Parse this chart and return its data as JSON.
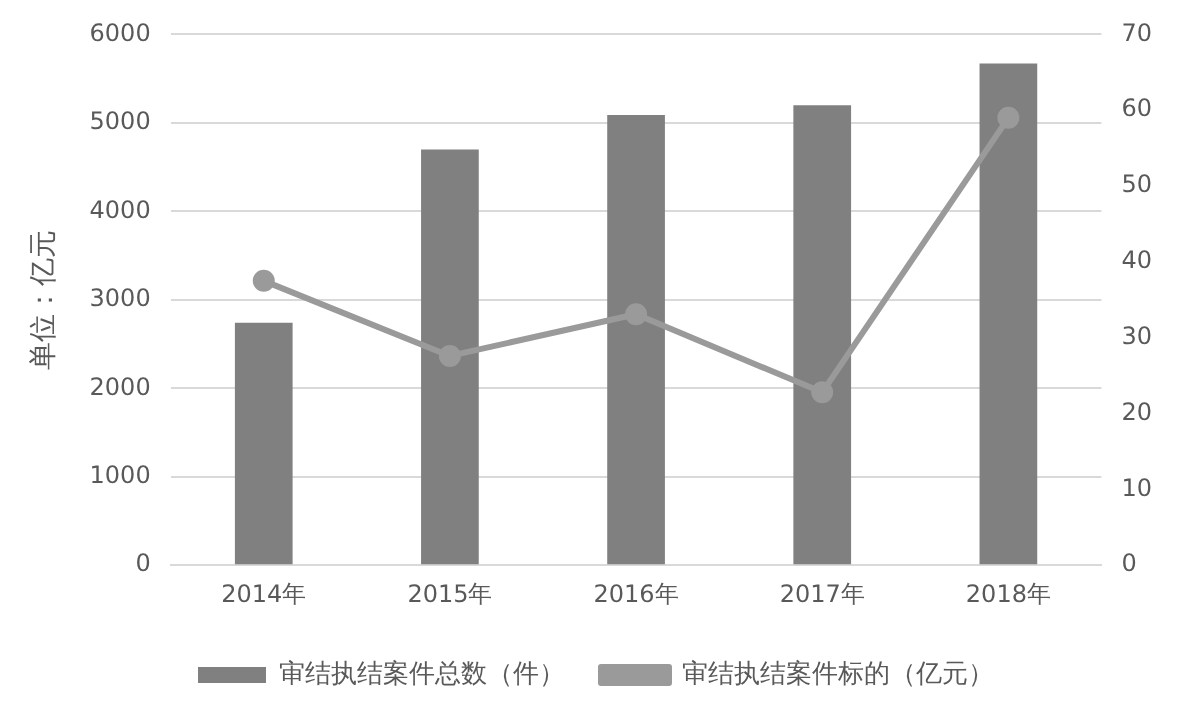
{
  "chart_data": {
    "type": "bar",
    "ylabel": "单位：亿元",
    "categories": [
      "2014年",
      "2015年",
      "2016年",
      "2017年",
      "2018年"
    ],
    "series": [
      {
        "name": "审结执结案件总数（件）",
        "color": "#808080",
        "values": [
          2740,
          4700,
          5090,
          5200,
          5670
        ]
      },
      {
        "name": "审结执结案件标的（亿元）",
        "type": "line",
        "axis": "y2",
        "color": "#9a9a9a",
        "values": [
          37.5,
          27.6,
          33.1,
          22.8,
          59.0
        ]
      }
    ],
    "ylim": [
      0,
      6000
    ],
    "yticks": [
      0,
      1000,
      2000,
      3000,
      4000,
      5000,
      6000
    ],
    "y2lim": [
      0,
      70
    ],
    "y2ticks": [
      0,
      10,
      20,
      30,
      40,
      50,
      60,
      70
    ],
    "grid": "y",
    "legend": "bottom",
    "marker": "circle"
  }
}
